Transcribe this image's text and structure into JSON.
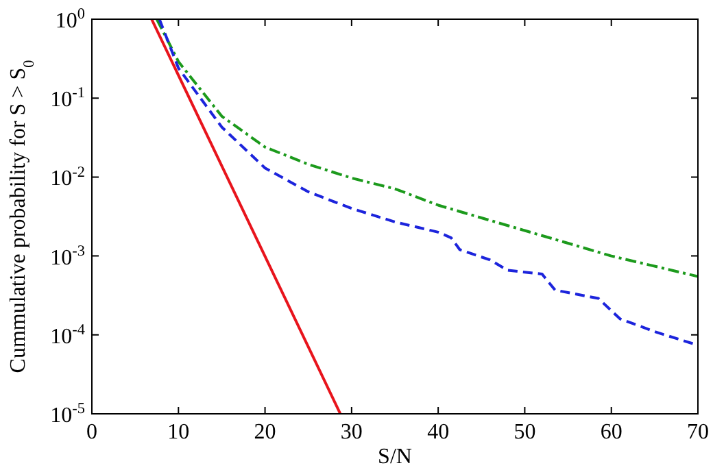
{
  "chart_data": {
    "type": "line",
    "xlabel": "S/N",
    "ylabel": "Cummulative probability for S > S$_{0}$",
    "log": "y",
    "grid": false,
    "legend": false,
    "marker": "none",
    "xlim": [
      0,
      70
    ],
    "xticks": [
      0,
      10,
      20,
      30,
      40,
      50,
      60,
      70
    ],
    "ylim": [
      1e-05,
      1
    ],
    "yticks": [
      {
        "value": 1e-05,
        "label": "10$^{-5}$"
      },
      {
        "value": 0.0001,
        "label": "10$^{-4}$"
      },
      {
        "value": 0.001,
        "label": "10$^{-3}$"
      },
      {
        "value": 0.01,
        "label": "10$^{-2}$"
      },
      {
        "value": 0.1,
        "label": "10$^{-1}$"
      },
      {
        "value": 1,
        "label": "10$^{0}$"
      }
    ],
    "series": [
      {
        "color": "#e8141c",
        "line_style": "solid",
        "x": [
          6.9,
          28.7
        ],
        "values": [
          1,
          1e-05
        ]
      },
      {
        "color": "#1c24dc",
        "line_style": "dashed",
        "x": [
          7.8,
          10,
          15,
          20,
          25,
          30,
          35,
          40,
          41.5,
          42.5,
          46,
          48,
          52,
          53.5,
          58.5,
          61,
          65,
          70
        ],
        "values": [
          1,
          0.24,
          0.043,
          0.013,
          0.0065,
          0.004,
          0.0027,
          0.002,
          0.0017,
          0.0012,
          0.00089,
          0.00066,
          0.00059,
          0.00037,
          0.00029,
          0.00016,
          0.00011,
          7.4e-05
        ]
      },
      {
        "color": "#1c9a1c",
        "line_style": "dashdot",
        "x": [
          7.5,
          10,
          15,
          20,
          25,
          30,
          35,
          40,
          50,
          60,
          70
        ],
        "values": [
          1,
          0.29,
          0.059,
          0.024,
          0.0145,
          0.0097,
          0.0071,
          0.0044,
          0.0021,
          0.001,
          0.00055
        ]
      }
    ]
  }
}
